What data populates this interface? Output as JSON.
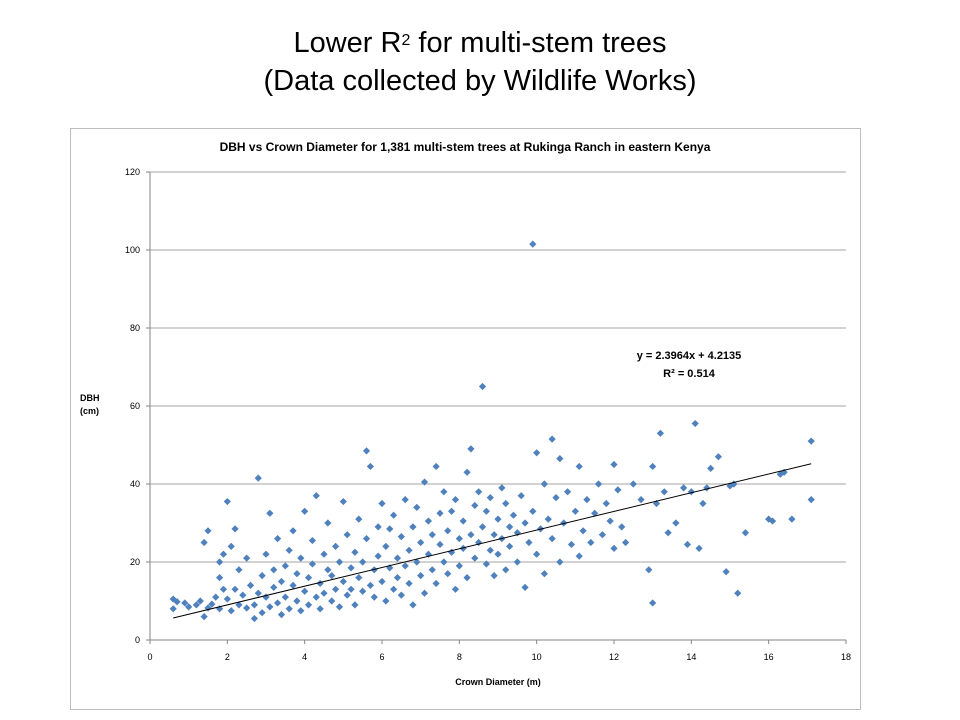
{
  "slide": {
    "title_line1_prefix": "Lower R",
    "title_line1_sup": "2",
    "title_line1_suffix": " for multi-stem trees",
    "title_line2": "(Data collected by Wildlife Works)"
  },
  "chart_data": {
    "type": "scatter",
    "title": "DBH vs Crown Diameter for 1,381 multi-stem trees at Rukinga Ranch in eastern  Kenya",
    "xlabel": "Crown Diameter (m)",
    "ylabel_line1": "DBH",
    "ylabel_line2": "(cm)",
    "xlim": [
      0,
      18
    ],
    "ylim": [
      0,
      120
    ],
    "xticks": [
      0,
      2,
      4,
      6,
      8,
      10,
      12,
      14,
      16,
      18
    ],
    "yticks": [
      0,
      20,
      40,
      60,
      80,
      100,
      120
    ],
    "grid": "horizontal",
    "marker_color": "#4f81bd",
    "trendline": {
      "slope": 2.3964,
      "intercept": 4.2135,
      "x_range": [
        0.6,
        17.1
      ],
      "color": "#000000",
      "equation": "y = 2.3964x + 4.2135",
      "r2_label": "R² = 0.514"
    },
    "points": [
      [
        0.6,
        10.5
      ],
      [
        0.6,
        8.0
      ],
      [
        0.7,
        9.8
      ],
      [
        0.9,
        9.5
      ],
      [
        1.0,
        8.5
      ],
      [
        1.2,
        9.0
      ],
      [
        1.3,
        10.0
      ],
      [
        1.4,
        6.0
      ],
      [
        1.4,
        25.0
      ],
      [
        1.5,
        28.0
      ],
      [
        1.5,
        8.2
      ],
      [
        1.6,
        9.2
      ],
      [
        1.7,
        11.0
      ],
      [
        1.8,
        8.0
      ],
      [
        1.8,
        16.0
      ],
      [
        1.8,
        20.0
      ],
      [
        1.9,
        13.0
      ],
      [
        1.9,
        22.0
      ],
      [
        2.0,
        35.5
      ],
      [
        2.0,
        10.5
      ],
      [
        2.1,
        7.5
      ],
      [
        2.1,
        24.0
      ],
      [
        2.2,
        28.5
      ],
      [
        2.2,
        13.0
      ],
      [
        2.3,
        9.0
      ],
      [
        2.3,
        18.0
      ],
      [
        2.4,
        11.5
      ],
      [
        2.5,
        8.2
      ],
      [
        2.5,
        21.0
      ],
      [
        2.6,
        14.0
      ],
      [
        2.7,
        9.0
      ],
      [
        2.7,
        5.5
      ],
      [
        2.8,
        41.5
      ],
      [
        2.8,
        12.0
      ],
      [
        2.9,
        16.5
      ],
      [
        2.9,
        7.0
      ],
      [
        3.0,
        22.0
      ],
      [
        3.0,
        11.0
      ],
      [
        3.1,
        32.5
      ],
      [
        3.1,
        8.5
      ],
      [
        3.2,
        18.0
      ],
      [
        3.2,
        13.5
      ],
      [
        3.3,
        26.0
      ],
      [
        3.3,
        9.5
      ],
      [
        3.4,
        15.0
      ],
      [
        3.4,
        6.5
      ],
      [
        3.5,
        19.0
      ],
      [
        3.5,
        11.0
      ],
      [
        3.6,
        23.0
      ],
      [
        3.6,
        8.0
      ],
      [
        3.7,
        14.0
      ],
      [
        3.7,
        28.0
      ],
      [
        3.8,
        10.0
      ],
      [
        3.8,
        17.0
      ],
      [
        3.9,
        7.5
      ],
      [
        3.9,
        21.0
      ],
      [
        4.0,
        12.5
      ],
      [
        4.0,
        33.0
      ],
      [
        4.1,
        9.0
      ],
      [
        4.1,
        16.0
      ],
      [
        4.2,
        19.5
      ],
      [
        4.2,
        25.5
      ],
      [
        4.3,
        11.0
      ],
      [
        4.3,
        37.0
      ],
      [
        4.4,
        8.0
      ],
      [
        4.4,
        14.5
      ],
      [
        4.5,
        22.0
      ],
      [
        4.5,
        12.0
      ],
      [
        4.6,
        18.0
      ],
      [
        4.6,
        30.0
      ],
      [
        4.7,
        10.0
      ],
      [
        4.7,
        16.5
      ],
      [
        4.8,
        24.0
      ],
      [
        4.8,
        13.0
      ],
      [
        4.9,
        20.0
      ],
      [
        4.9,
        8.5
      ],
      [
        5.0,
        35.5
      ],
      [
        5.0,
        15.0
      ],
      [
        5.1,
        11.5
      ],
      [
        5.1,
        27.0
      ],
      [
        5.2,
        18.5
      ],
      [
        5.2,
        13.0
      ],
      [
        5.3,
        22.5
      ],
      [
        5.3,
        9.0
      ],
      [
        5.4,
        31.0
      ],
      [
        5.4,
        16.0
      ],
      [
        5.5,
        12.5
      ],
      [
        5.5,
        20.0
      ],
      [
        5.6,
        48.5
      ],
      [
        5.6,
        26.0
      ],
      [
        5.7,
        14.0
      ],
      [
        5.7,
        44.5
      ],
      [
        5.8,
        18.0
      ],
      [
        5.8,
        11.0
      ],
      [
        5.9,
        29.0
      ],
      [
        5.9,
        21.5
      ],
      [
        6.0,
        15.0
      ],
      [
        6.0,
        35.0
      ],
      [
        6.1,
        24.0
      ],
      [
        6.1,
        10.0
      ],
      [
        6.2,
        18.5
      ],
      [
        6.2,
        28.5
      ],
      [
        6.3,
        13.0
      ],
      [
        6.3,
        32.0
      ],
      [
        6.4,
        21.0
      ],
      [
        6.4,
        16.0
      ],
      [
        6.5,
        26.5
      ],
      [
        6.5,
        11.5
      ],
      [
        6.6,
        19.0
      ],
      [
        6.6,
        36.0
      ],
      [
        6.7,
        23.0
      ],
      [
        6.7,
        14.5
      ],
      [
        6.8,
        29.0
      ],
      [
        6.8,
        9.0
      ],
      [
        6.9,
        20.0
      ],
      [
        6.9,
        34.0
      ],
      [
        7.0,
        16.5
      ],
      [
        7.0,
        25.0
      ],
      [
        7.1,
        40.5
      ],
      [
        7.1,
        12.0
      ],
      [
        7.2,
        22.0
      ],
      [
        7.2,
        30.5
      ],
      [
        7.3,
        18.0
      ],
      [
        7.3,
        27.0
      ],
      [
        7.4,
        44.5
      ],
      [
        7.4,
        14.5
      ],
      [
        7.5,
        24.5
      ],
      [
        7.5,
        32.5
      ],
      [
        7.6,
        20.0
      ],
      [
        7.6,
        38.0
      ],
      [
        7.7,
        17.0
      ],
      [
        7.7,
        28.0
      ],
      [
        7.8,
        33.0
      ],
      [
        7.8,
        22.5
      ],
      [
        7.9,
        13.0
      ],
      [
        7.9,
        36.0
      ],
      [
        8.0,
        26.0
      ],
      [
        8.0,
        19.0
      ],
      [
        8.1,
        30.5
      ],
      [
        8.1,
        23.5
      ],
      [
        8.2,
        43.0
      ],
      [
        8.2,
        16.0
      ],
      [
        8.3,
        49.0
      ],
      [
        8.3,
        27.0
      ],
      [
        8.4,
        21.0
      ],
      [
        8.4,
        34.5
      ],
      [
        8.5,
        25.0
      ],
      [
        8.5,
        38.0
      ],
      [
        8.6,
        65.0
      ],
      [
        8.6,
        29.0
      ],
      [
        8.7,
        19.5
      ],
      [
        8.7,
        33.0
      ],
      [
        8.8,
        23.0
      ],
      [
        8.8,
        36.5
      ],
      [
        8.9,
        27.0
      ],
      [
        8.9,
        16.5
      ],
      [
        9.0,
        31.0
      ],
      [
        9.0,
        22.0
      ],
      [
        9.1,
        39.0
      ],
      [
        9.1,
        26.0
      ],
      [
        9.2,
        35.0
      ],
      [
        9.2,
        18.0
      ],
      [
        9.3,
        29.0
      ],
      [
        9.3,
        24.0
      ],
      [
        9.4,
        32.0
      ],
      [
        9.5,
        20.0
      ],
      [
        9.5,
        27.5
      ],
      [
        9.6,
        37.0
      ],
      [
        9.7,
        13.5
      ],
      [
        9.7,
        30.0
      ],
      [
        9.8,
        25.0
      ],
      [
        9.9,
        101.5
      ],
      [
        9.9,
        33.0
      ],
      [
        10.0,
        48.0
      ],
      [
        10.0,
        22.0
      ],
      [
        10.1,
        28.5
      ],
      [
        10.2,
        40.0
      ],
      [
        10.2,
        17.0
      ],
      [
        10.3,
        31.0
      ],
      [
        10.4,
        51.5
      ],
      [
        10.4,
        26.0
      ],
      [
        10.5,
        36.5
      ],
      [
        10.6,
        46.5
      ],
      [
        10.6,
        20.0
      ],
      [
        10.7,
        30.0
      ],
      [
        10.8,
        38.0
      ],
      [
        10.9,
        24.5
      ],
      [
        11.0,
        33.0
      ],
      [
        11.1,
        44.5
      ],
      [
        11.1,
        21.5
      ],
      [
        11.2,
        28.0
      ],
      [
        11.3,
        36.0
      ],
      [
        11.4,
        25.0
      ],
      [
        11.5,
        32.5
      ],
      [
        11.6,
        40.0
      ],
      [
        11.7,
        27.0
      ],
      [
        11.8,
        35.0
      ],
      [
        11.9,
        30.5
      ],
      [
        12.0,
        45.0
      ],
      [
        12.0,
        23.5
      ],
      [
        12.1,
        38.5
      ],
      [
        12.2,
        29.0
      ],
      [
        12.3,
        25.0
      ],
      [
        12.5,
        40.0
      ],
      [
        12.7,
        36.0
      ],
      [
        12.9,
        18.0
      ],
      [
        13.0,
        44.5
      ],
      [
        13.0,
        9.5
      ],
      [
        13.1,
        35.0
      ],
      [
        13.2,
        53.0
      ],
      [
        13.3,
        38.0
      ],
      [
        13.4,
        27.5
      ],
      [
        13.6,
        30.0
      ],
      [
        13.8,
        39.0
      ],
      [
        13.9,
        24.5
      ],
      [
        14.0,
        38.0
      ],
      [
        14.1,
        55.5
      ],
      [
        14.2,
        23.5
      ],
      [
        14.3,
        35.0
      ],
      [
        14.4,
        39.0
      ],
      [
        14.5,
        44.0
      ],
      [
        14.7,
        47.0
      ],
      [
        14.9,
        17.5
      ],
      [
        15.0,
        39.5
      ],
      [
        15.1,
        40.0
      ],
      [
        15.2,
        12.0
      ],
      [
        15.4,
        27.5
      ],
      [
        16.0,
        31.0
      ],
      [
        16.1,
        30.5
      ],
      [
        16.3,
        42.5
      ],
      [
        16.4,
        43.0
      ],
      [
        16.6,
        31.0
      ],
      [
        17.1,
        51.0
      ],
      [
        17.1,
        36.0
      ]
    ]
  }
}
